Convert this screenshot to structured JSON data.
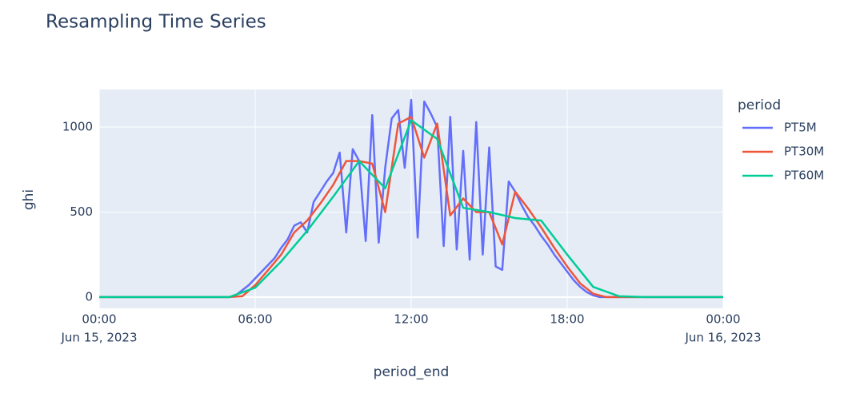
{
  "chart_data": {
    "type": "line",
    "title": "Resampling Time Series",
    "x_label": "period_end",
    "y_label": "ghi",
    "legend_title": "period",
    "grid": true,
    "xlim": [
      "2023-06-15T00:00",
      "2023-06-16T00:00"
    ],
    "xticks": [
      {
        "value": "2023-06-15T00:00",
        "label": [
          "00:00",
          "Jun 15, 2023"
        ]
      },
      {
        "value": "2023-06-15T06:00",
        "label": [
          "06:00"
        ]
      },
      {
        "value": "2023-06-15T12:00",
        "label": [
          "12:00"
        ]
      },
      {
        "value": "2023-06-15T18:00",
        "label": [
          "18:00"
        ]
      },
      {
        "value": "2023-06-16T00:00",
        "label": [
          "00:00",
          "Jun 16, 2023"
        ]
      }
    ],
    "ylim": [
      -66,
      1221
    ],
    "yticks": [
      0,
      500,
      1000
    ],
    "series": [
      {
        "name": "PT5M",
        "color": "#636efa",
        "x": [
          "2023-06-15T00:00",
          "2023-06-15T04:45",
          "2023-06-15T05:00",
          "2023-06-15T05:15",
          "2023-06-15T05:30",
          "2023-06-15T05:45",
          "2023-06-15T06:00",
          "2023-06-15T06:15",
          "2023-06-15T06:30",
          "2023-06-15T06:45",
          "2023-06-15T07:00",
          "2023-06-15T07:15",
          "2023-06-15T07:30",
          "2023-06-15T07:45",
          "2023-06-15T08:00",
          "2023-06-15T08:15",
          "2023-06-15T08:30",
          "2023-06-15T08:45",
          "2023-06-15T09:00",
          "2023-06-15T09:15",
          "2023-06-15T09:30",
          "2023-06-15T09:45",
          "2023-06-15T10:00",
          "2023-06-15T10:15",
          "2023-06-15T10:30",
          "2023-06-15T10:45",
          "2023-06-15T11:00",
          "2023-06-15T11:15",
          "2023-06-15T11:30",
          "2023-06-15T11:45",
          "2023-06-15T12:00",
          "2023-06-15T12:15",
          "2023-06-15T12:30",
          "2023-06-15T12:45",
          "2023-06-15T13:00",
          "2023-06-15T13:15",
          "2023-06-15T13:30",
          "2023-06-15T13:45",
          "2023-06-15T14:00",
          "2023-06-15T14:15",
          "2023-06-15T14:30",
          "2023-06-15T14:45",
          "2023-06-15T15:00",
          "2023-06-15T15:15",
          "2023-06-15T15:30",
          "2023-06-15T15:45",
          "2023-06-15T16:00",
          "2023-06-15T16:15",
          "2023-06-15T16:30",
          "2023-06-15T16:45",
          "2023-06-15T17:00",
          "2023-06-15T17:15",
          "2023-06-15T17:30",
          "2023-06-15T17:45",
          "2023-06-15T18:00",
          "2023-06-15T18:15",
          "2023-06-15T18:30",
          "2023-06-15T18:45",
          "2023-06-15T19:00",
          "2023-06-15T19:15",
          "2023-06-15T19:30",
          "2023-06-16T00:00"
        ],
        "values": [
          0,
          0,
          0,
          10,
          40,
          70,
          110,
          150,
          190,
          230,
          290,
          340,
          420,
          440,
          380,
          560,
          620,
          680,
          730,
          850,
          380,
          870,
          800,
          330,
          1070,
          320,
          760,
          1050,
          1100,
          760,
          1160,
          350,
          1150,
          1080,
          1000,
          300,
          1060,
          280,
          860,
          220,
          1030,
          250,
          880,
          180,
          160,
          680,
          620,
          540,
          470,
          420,
          360,
          310,
          250,
          200,
          150,
          100,
          60,
          30,
          10,
          0,
          0,
          0
        ]
      },
      {
        "name": "PT30M",
        "color": "#ef553b",
        "x": [
          "2023-06-15T00:00",
          "2023-06-15T05:00",
          "2023-06-15T05:30",
          "2023-06-15T06:00",
          "2023-06-15T06:30",
          "2023-06-15T07:00",
          "2023-06-15T07:30",
          "2023-06-15T08:00",
          "2023-06-15T08:30",
          "2023-06-15T09:00",
          "2023-06-15T09:30",
          "2023-06-15T10:00",
          "2023-06-15T10:30",
          "2023-06-15T11:00",
          "2023-06-15T11:30",
          "2023-06-15T12:00",
          "2023-06-15T12:30",
          "2023-06-15T13:00",
          "2023-06-15T13:30",
          "2023-06-15T14:00",
          "2023-06-15T14:30",
          "2023-06-15T15:00",
          "2023-06-15T15:30",
          "2023-06-15T16:00",
          "2023-06-15T16:30",
          "2023-06-15T17:00",
          "2023-06-15T17:30",
          "2023-06-15T18:00",
          "2023-06-15T18:30",
          "2023-06-15T19:00",
          "2023-06-15T19:30",
          "2023-06-15T20:00",
          "2023-06-16T00:00"
        ],
        "values": [
          0,
          0,
          5,
          70,
          160,
          250,
          380,
          450,
          550,
          660,
          800,
          800,
          785,
          500,
          1020,
          1060,
          820,
          1020,
          480,
          580,
          500,
          500,
          310,
          620,
          520,
          410,
          290,
          180,
          80,
          20,
          0,
          0,
          0
        ]
      },
      {
        "name": "PT60M",
        "color": "#00cc96",
        "x": [
          "2023-06-15T00:00",
          "2023-06-15T05:00",
          "2023-06-15T06:00",
          "2023-06-15T07:00",
          "2023-06-15T08:00",
          "2023-06-15T09:00",
          "2023-06-15T10:00",
          "2023-06-15T11:00",
          "2023-06-15T12:00",
          "2023-06-15T13:00",
          "2023-06-15T14:00",
          "2023-06-15T15:00",
          "2023-06-15T16:00",
          "2023-06-15T17:00",
          "2023-06-15T18:00",
          "2023-06-15T19:00",
          "2023-06-15T20:00",
          "2023-06-15T21:00",
          "2023-06-16T00:00"
        ],
        "values": [
          0,
          0,
          55,
          210,
          390,
          590,
          800,
          640,
          1040,
          930,
          525,
          500,
          465,
          450,
          250,
          60,
          5,
          0,
          0
        ]
      }
    ]
  }
}
